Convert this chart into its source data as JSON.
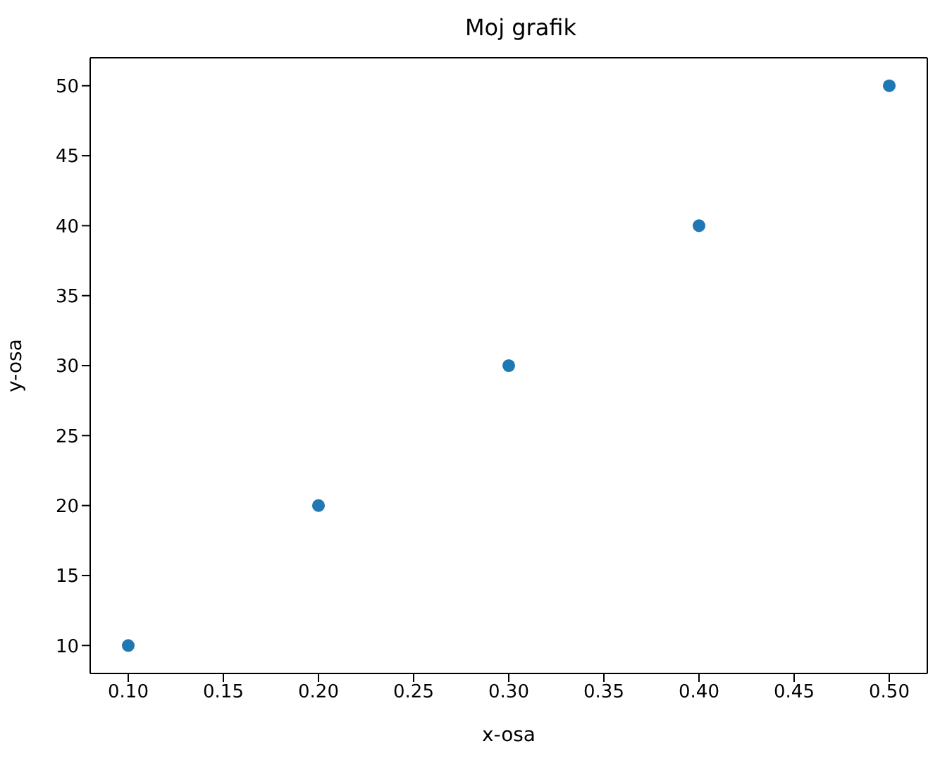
{
  "chart_data": {
    "type": "scatter",
    "title": "Moj grafik",
    "xlabel": "x-osa",
    "ylabel": "y-osa",
    "x": [
      0.1,
      0.2,
      0.3,
      0.4,
      0.5
    ],
    "series": [
      {
        "color": "#1f77b4",
        "values": [
          10,
          20,
          30,
          40,
          50
        ]
      }
    ],
    "xlim": [
      0.08,
      0.52
    ],
    "xticks": [
      {
        "value": 0.1,
        "label": "0.10"
      },
      {
        "value": 0.15,
        "label": "0.15"
      },
      {
        "value": 0.2,
        "label": "0.20"
      },
      {
        "value": 0.25,
        "label": "0.25"
      },
      {
        "value": 0.3,
        "label": "0.30"
      },
      {
        "value": 0.35,
        "label": "0.35"
      },
      {
        "value": 0.4,
        "label": "0.40"
      },
      {
        "value": 0.45,
        "label": "0.45"
      },
      {
        "value": 0.5,
        "label": "0.50"
      }
    ],
    "ylim": [
      8,
      52
    ],
    "yticks": [
      10,
      15,
      20,
      25,
      30,
      35,
      40,
      45,
      50
    ],
    "grid": false,
    "legend": false,
    "marker": "circle"
  }
}
